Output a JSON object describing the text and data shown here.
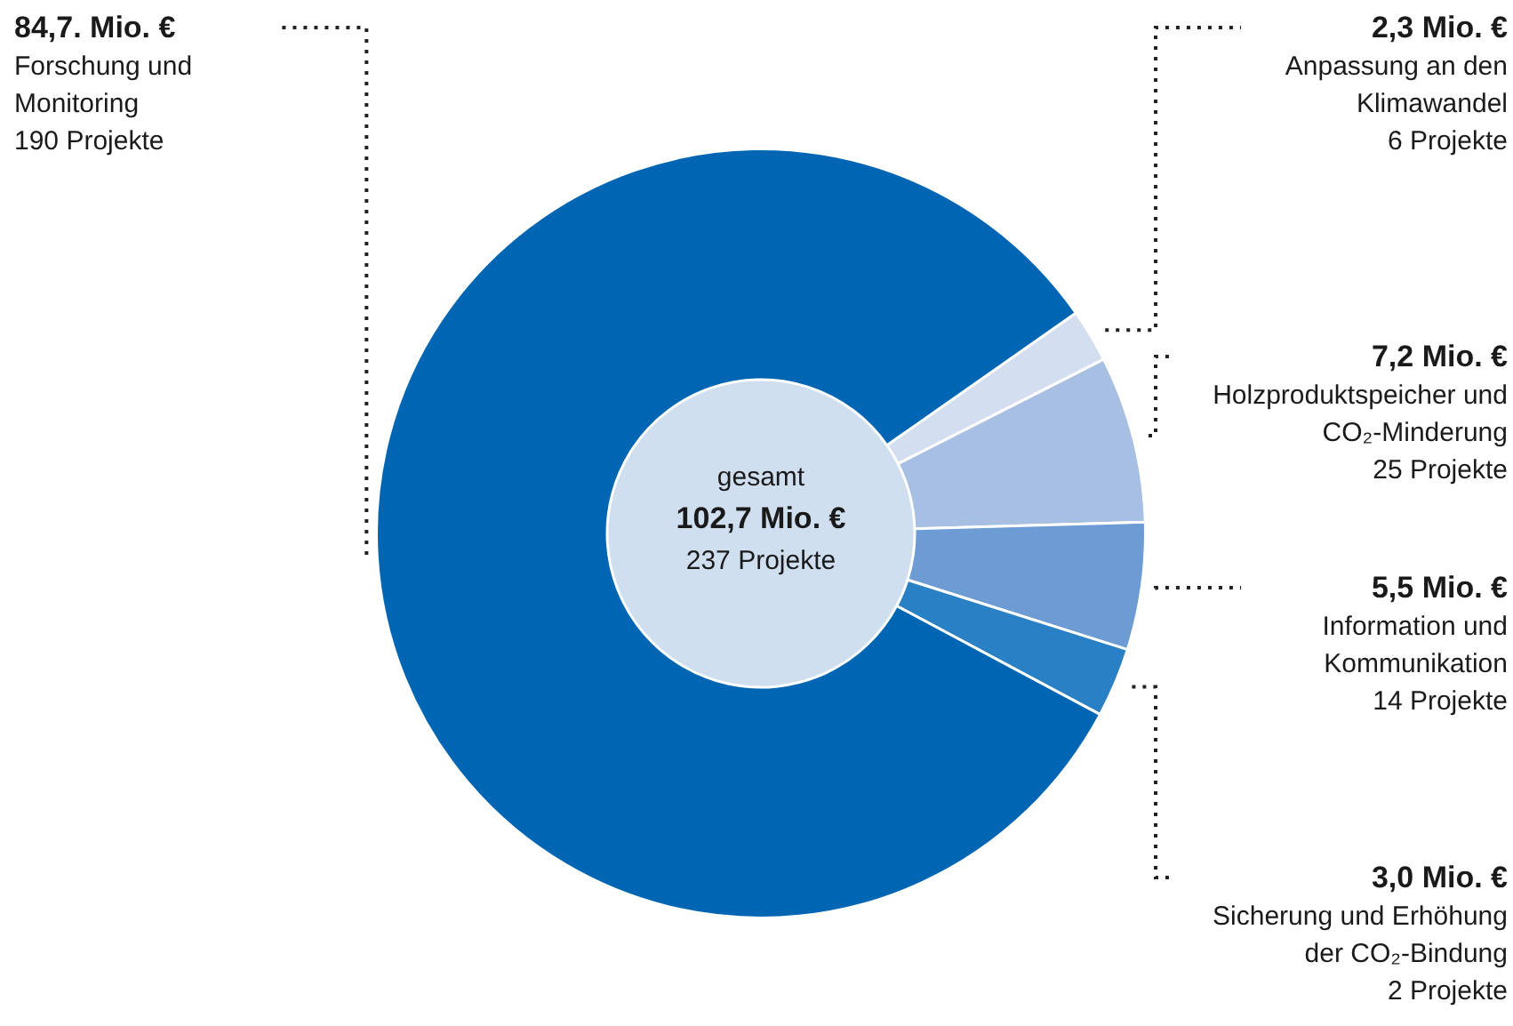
{
  "chart_data": {
    "type": "donut",
    "categories": [
      "Anpassung an den Klimawandel",
      "Holzproduktspeicher und CO₂-Minderung",
      "Information und Kommunikation",
      "Sicherung und Erhöhung der CO₂-Bindung",
      "Forschung und Monitoring"
    ],
    "values": [
      2.3,
      7.2,
      5.5,
      3.0,
      84.7
    ],
    "value_labels": [
      "2,3 Mio. €",
      "7,2 Mio. €",
      "5,5 Mio. €",
      "3,0 Mio. €",
      "84,7. Mio. €"
    ],
    "colors": [
      "#d3def0",
      "#a7bfe3",
      "#6c9cd3",
      "#2a80c5",
      "#0066b3"
    ],
    "annotations": [
      "gesamt",
      "102,7 Mio. €",
      "237 Projekte",
      {
        "text": "6 Projekte",
        "x": "Anpassung an den Klimawandel"
      },
      {
        "text": "25 Projekte",
        "x": "Holzproduktspeicher und CO₂-Minderung"
      },
      {
        "text": "14 Projekte",
        "x": "Information und Kommunikation"
      },
      {
        "text": "2 Projekte",
        "x": "Sicherung und Erhöhung der CO₂-Bindung"
      },
      {
        "text": "190 Projekte",
        "x": "Forschung und Monitoring"
      }
    ],
    "legend": false
  }
}
